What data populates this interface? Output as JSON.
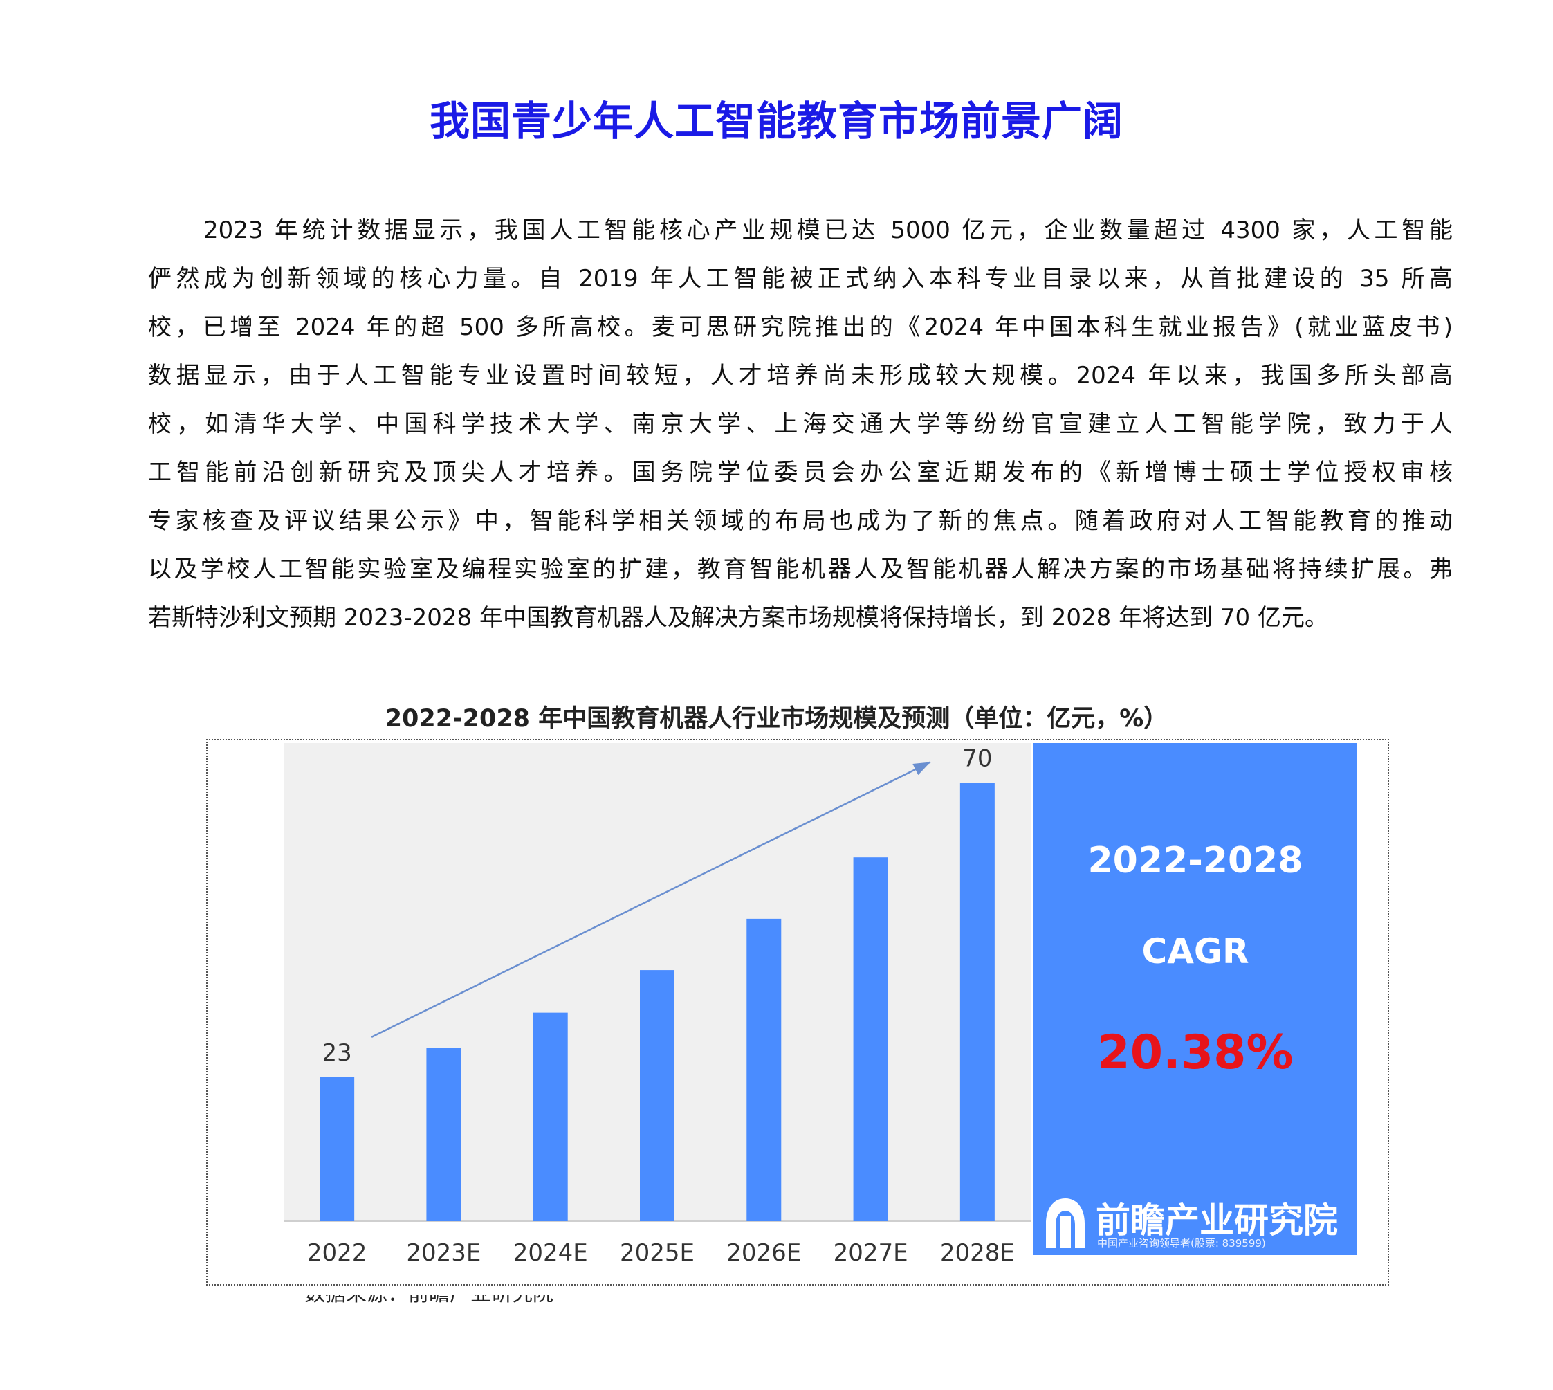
{
  "title": "我国青少年人工智能教育市场前景广阔",
  "paragraph_lines": [
    "2023 年统计数据显示，我国人工智能核心产业规模已达 5000 亿元，企业数量超过 4300 家，人工智能",
    "俨然成为创新领域的核心力量。自 2019 年人工智能被正式纳入本科专业目录以来，从首批建设的 35 所高",
    "校，已增至 2024 年的超 500 多所高校。麦可思研究院推出的《2024 年中国本科生就业报告》(就业蓝皮书)",
    "数据显示，由于人工智能专业设置时间较短，人才培养尚未形成较大规模。2024 年以来，我国多所头部高",
    "校，如清华大学、中国科学技术大学、南京大学、上海交通大学等纷纷官宣建立人工智能学院，致力于人",
    "工智能前沿创新研究及顶尖人才培养。国务院学位委员会办公室近期发布的《新增博士硕士学位授权审核",
    "专家核查及评议结果公示》中，智能科学相关领域的布局也成为了新的焦点。随着政府对人工智能教育的推动",
    "以及学校人工智能实验室及编程实验室的扩建，教育智能机器人及智能机器人解决方案的市场基础将持续扩展。弗",
    "若斯特沙利文预期 2023-2028 年中国教育机器人及解决方案市场规模将保持增长，到 2028 年将达到 70 亿元。"
  ],
  "chart_data": {
    "type": "bar",
    "title": "2022-2028 年中国教育机器人行业市场规模及预测（单位：亿元，%）",
    "categories": [
      "2022",
      "2023E",
      "2024E",
      "2025E",
      "2026E",
      "2027E",
      "2028E"
    ],
    "values": [
      23,
      27.7,
      33.3,
      40.1,
      48.3,
      58.1,
      70
    ],
    "data_labels": [
      "23",
      "",
      "",
      "",
      "",
      "",
      "70"
    ],
    "ylim": [
      0,
      80
    ],
    "grid": false,
    "bar_color": "#4a8cff",
    "plot_background": "#f0f0f0",
    "trend_arrow": true,
    "trend_arrow_color": "#6a8fd0"
  },
  "cagr_panel": {
    "years": "2022-2028",
    "label": "CAGR",
    "value": "20.38%",
    "background": "#4a8cff",
    "value_color": "#e8141a"
  },
  "logo": {
    "name": "前瞻产业研究院",
    "subtitle": "中国产业咨询领导者(股票: 839599)"
  },
  "cut_off_text": "数据来源：前瞻产业研究院"
}
